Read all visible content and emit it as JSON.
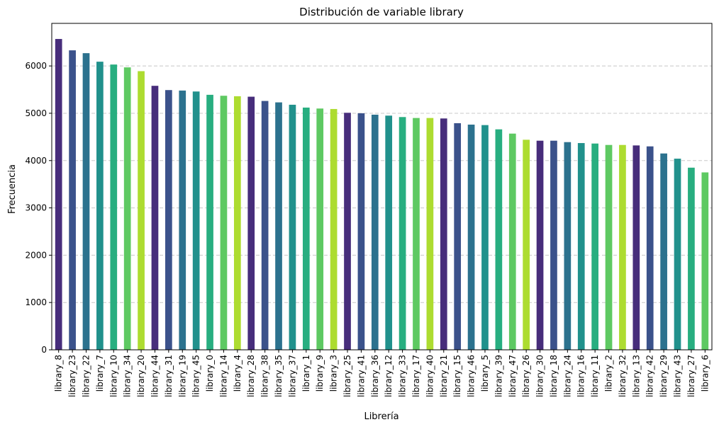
{
  "chart_data": {
    "type": "bar",
    "title": "Distribución de variable library",
    "xlabel": "Librería",
    "ylabel": "Frecuencia",
    "ylim": [
      0,
      6900
    ],
    "yticks": [
      0,
      1000,
      2000,
      3000,
      4000,
      5000,
      6000
    ],
    "grid": "y-dashed",
    "categories": [
      "library_8",
      "library_23",
      "library_22",
      "library_7",
      "library_10",
      "library_34",
      "library_20",
      "library_44",
      "library_31",
      "library_19",
      "library_45",
      "library_0",
      "library_14",
      "library_4",
      "library_28",
      "library_38",
      "library_35",
      "library_37",
      "library_1",
      "library_9",
      "library_3",
      "library_25",
      "library_41",
      "library_36",
      "library_12",
      "library_33",
      "library_17",
      "library_40",
      "library_21",
      "library_15",
      "library_46",
      "library_5",
      "library_39",
      "library_47",
      "library_26",
      "library_30",
      "library_18",
      "library_24",
      "library_16",
      "library_11",
      "library_2",
      "library_32",
      "library_13",
      "library_42",
      "library_29",
      "library_43",
      "library_27",
      "library_6"
    ],
    "values": [
      6570,
      6330,
      6270,
      6090,
      6030,
      5970,
      5890,
      5580,
      5490,
      5480,
      5460,
      5390,
      5370,
      5360,
      5350,
      5260,
      5230,
      5180,
      5120,
      5100,
      5090,
      5010,
      5000,
      4970,
      4950,
      4920,
      4900,
      4900,
      4890,
      4790,
      4760,
      4750,
      4660,
      4570,
      4440,
      4420,
      4420,
      4390,
      4370,
      4360,
      4330,
      4330,
      4320,
      4300,
      4150,
      4040,
      3850,
      3750
    ],
    "colors": [
      "#472d7b",
      "#3b528b",
      "#2c728e",
      "#21918c",
      "#28ae80",
      "#5ec962",
      "#addc30",
      "#472d7b",
      "#3b528b",
      "#2c728e",
      "#21918c",
      "#28ae80",
      "#5ec962",
      "#addc30"
    ]
  }
}
